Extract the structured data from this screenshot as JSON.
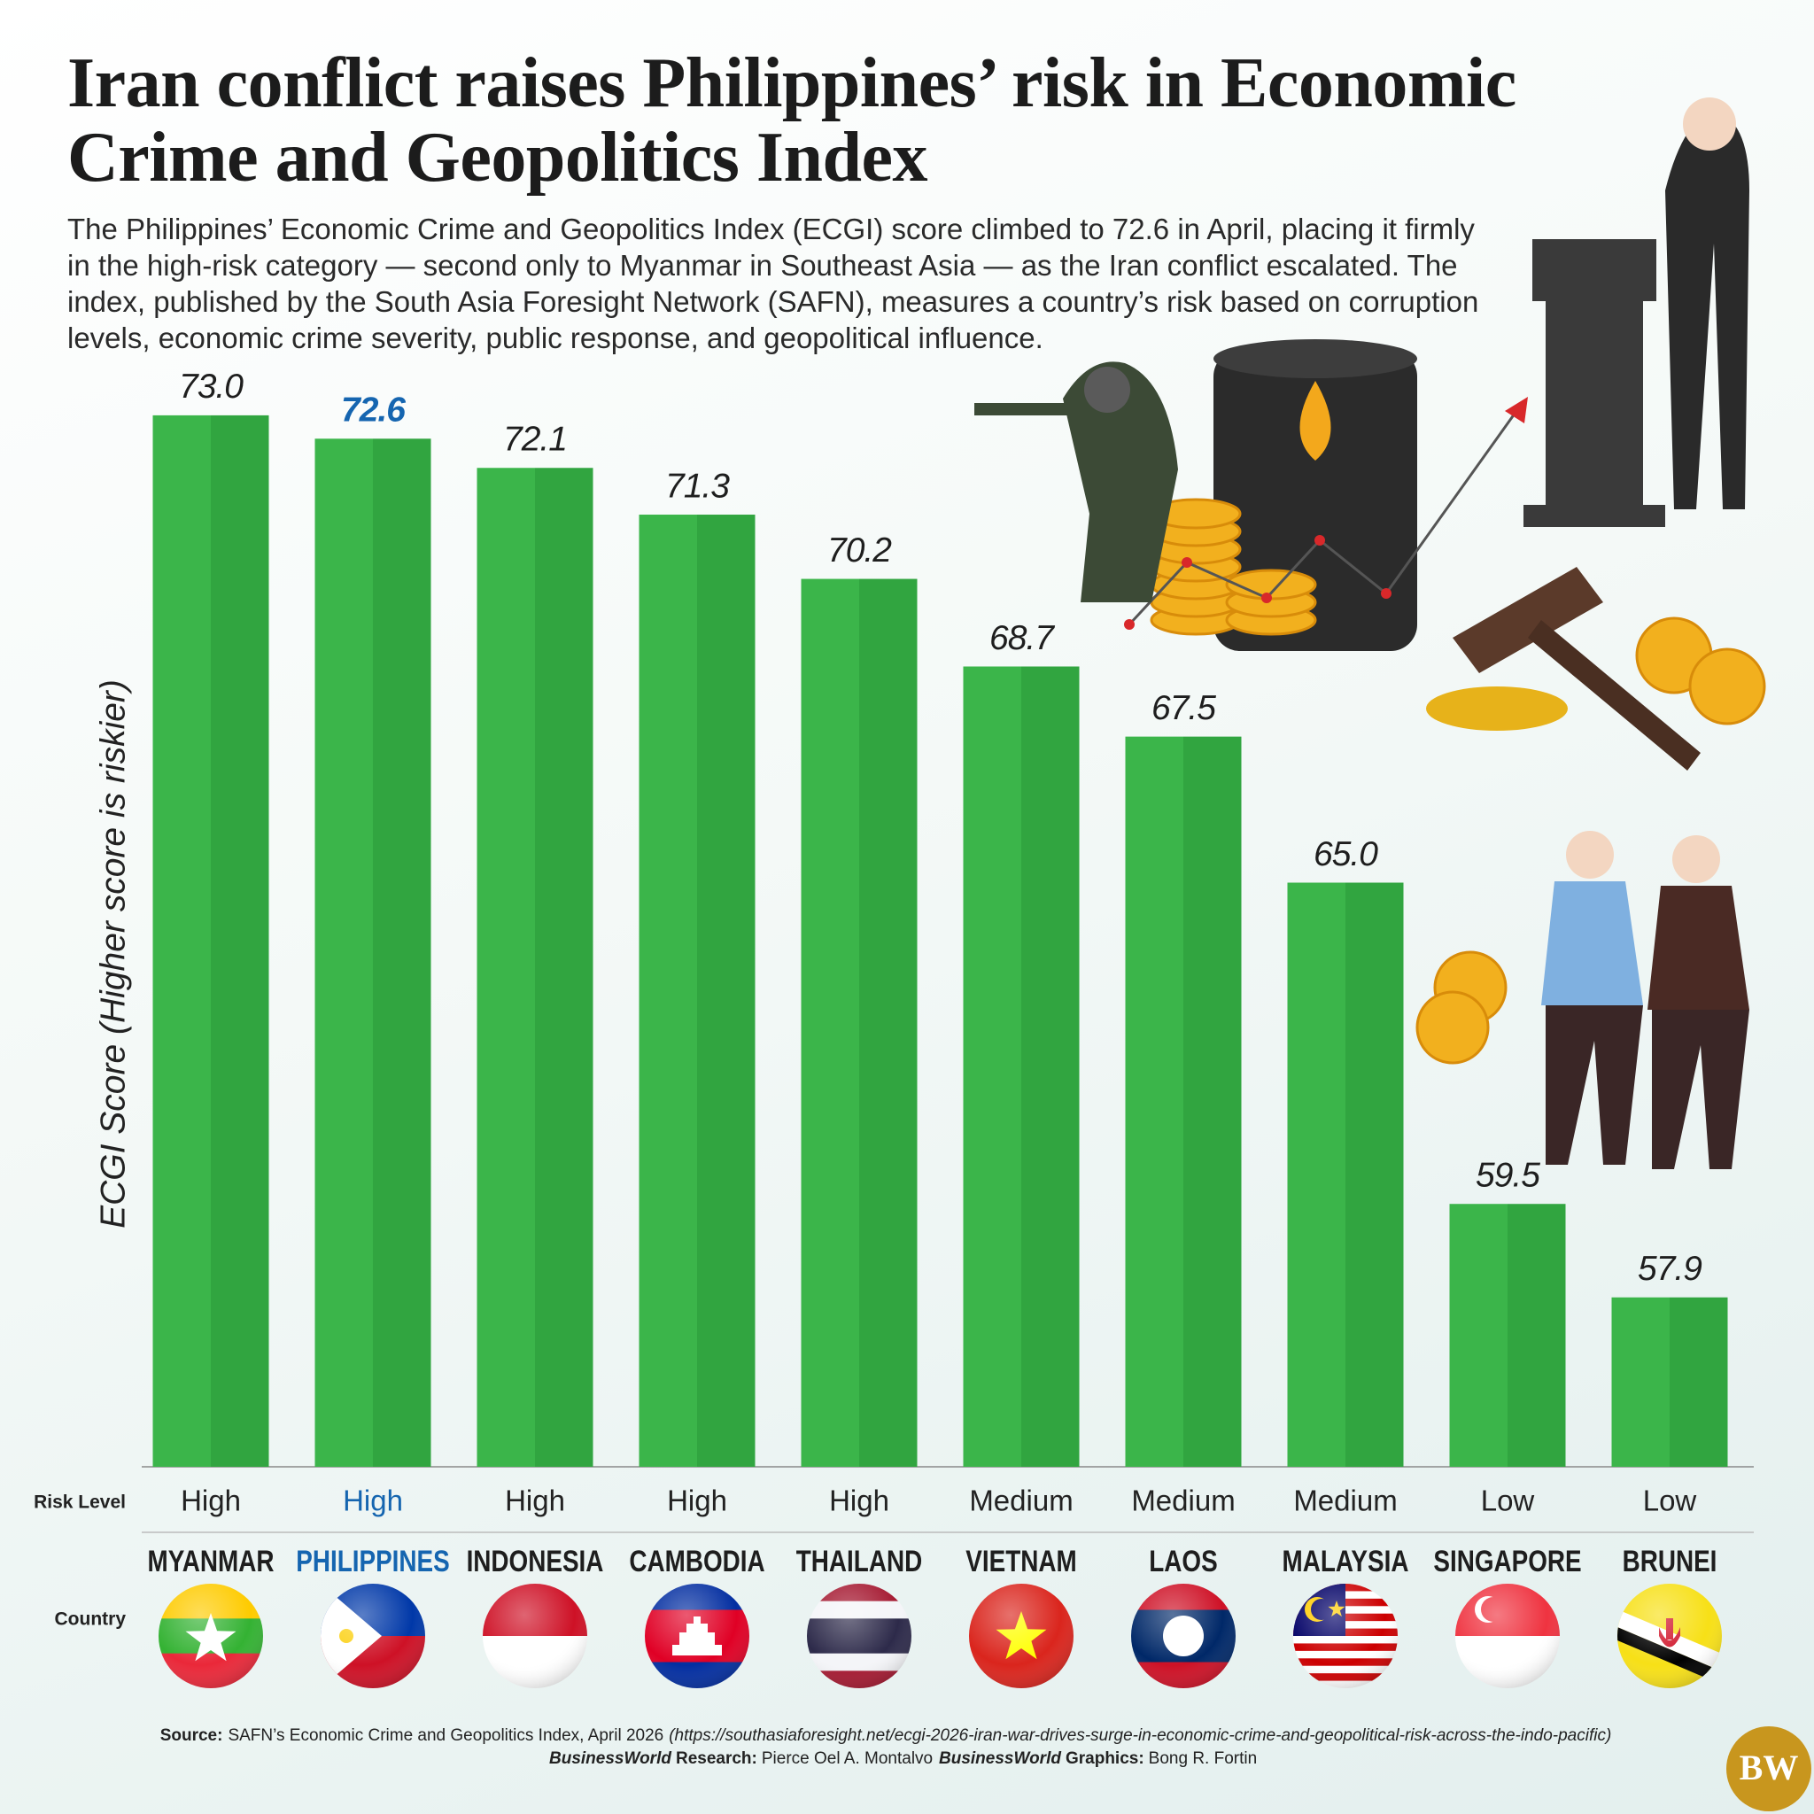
{
  "chart_data": {
    "type": "bar",
    "title": "Iran conflict raises Philippines’ risk in Economic Crime and Geopolitics Index",
    "subtitle": "The Philippines’ Economic Crime and Geopolitics Index (ECGI) score climbed to 72.6 in April, placing it firmly in the high-risk category — second only to Myanmar in Southeast Asia — as the Iran conflict escalated. The index, published by the South Asia Foresight Network (SAFN), measures a country’s risk based on corruption levels, economic crime severity, public response, and geopolitical influence.",
    "y_label": "ECGI Score (Higher score is riskier)",
    "categories": [
      "MYANMAR",
      "PHILIPPINES",
      "INDONESIA",
      "CAMBODIA",
      "THAILAND",
      "VIETNAM",
      "LAOS",
      "MALAYSIA",
      "SINGAPORE",
      "BRUNEI"
    ],
    "values": [
      73.0,
      72.6,
      72.1,
      71.3,
      70.2,
      68.7,
      67.5,
      65.0,
      59.5,
      57.9
    ],
    "value_labels": [
      "73.0",
      "72.6",
      "72.1",
      "71.3",
      "70.2",
      "68.7",
      "67.5",
      "65.0",
      "59.5",
      "57.9"
    ],
    "color": "#3bb54a",
    "ylim": [
      55,
      75
    ],
    "highlight": {
      "category": "PHILIPPINES",
      "color": "#1565b0"
    },
    "risk_label": "Risk Level",
    "risk_levels": [
      "High",
      "High",
      "High",
      "High",
      "High",
      "Medium",
      "Medium",
      "Medium",
      "Low",
      "Low"
    ],
    "country_label": "Country",
    "source": {
      "label": "Source:",
      "text": "SAFN’s Economic Crime and Geopolitics Index, April 2026",
      "url": "(https://southasiaforesight.net/ecgi-2026-iran-war-drives-surge-in-economic-crime-and-geopolitical-risk-across-the-indo-pacific)"
    },
    "credits": [
      {
        "brand": "BusinessWorld",
        "role": "Research:",
        "name": "Pierce Oel A. Montalvo"
      },
      {
        "brand": "BusinessWorld",
        "role": "Graphics:",
        "name": "Bong R. Fortin"
      }
    ],
    "logo": "BW"
  }
}
